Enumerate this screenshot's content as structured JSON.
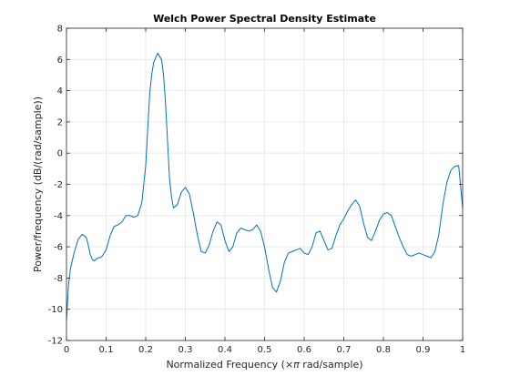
{
  "chart_data": {
    "type": "line",
    "title": "Welch Power Spectral Density Estimate",
    "xlabel_prefix": "Normalized Frequency  (×",
    "xlabel_symbol": "π",
    "xlabel_suffix": " rad/sample)",
    "ylabel": "Power/frequency (dB/(rad/sample))",
    "xlim": [
      0,
      1
    ],
    "ylim": [
      -12,
      8
    ],
    "xticks": [
      "0",
      "0.1",
      "0.2",
      "0.3",
      "0.4",
      "0.5",
      "0.6",
      "0.7",
      "0.8",
      "0.9",
      "1"
    ],
    "yticks": [
      "-12",
      "-10",
      "-8",
      "-6",
      "-4",
      "-2",
      "0",
      "2",
      "4",
      "6",
      "8"
    ],
    "grid": true,
    "series": [
      {
        "color": "#0072BD",
        "x": [
          0.0,
          0.005,
          0.01,
          0.02,
          0.03,
          0.04,
          0.05,
          0.055,
          0.06,
          0.065,
          0.07,
          0.075,
          0.08,
          0.085,
          0.09,
          0.1,
          0.11,
          0.12,
          0.13,
          0.14,
          0.15,
          0.16,
          0.17,
          0.18,
          0.19,
          0.2,
          0.205,
          0.21,
          0.215,
          0.22,
          0.23,
          0.24,
          0.245,
          0.25,
          0.255,
          0.26,
          0.265,
          0.27,
          0.28,
          0.29,
          0.3,
          0.31,
          0.32,
          0.33,
          0.34,
          0.35,
          0.36,
          0.37,
          0.38,
          0.39,
          0.4,
          0.41,
          0.42,
          0.43,
          0.44,
          0.45,
          0.46,
          0.47,
          0.48,
          0.49,
          0.5,
          0.51,
          0.52,
          0.53,
          0.54,
          0.55,
          0.56,
          0.57,
          0.58,
          0.59,
          0.6,
          0.61,
          0.62,
          0.63,
          0.64,
          0.65,
          0.66,
          0.67,
          0.68,
          0.69,
          0.7,
          0.71,
          0.72,
          0.73,
          0.74,
          0.75,
          0.76,
          0.77,
          0.78,
          0.79,
          0.8,
          0.81,
          0.82,
          0.83,
          0.84,
          0.85,
          0.86,
          0.87,
          0.88,
          0.89,
          0.9,
          0.91,
          0.92,
          0.93,
          0.94,
          0.95,
          0.96,
          0.97,
          0.98,
          0.99,
          1.0
        ],
        "y": [
          -10.7,
          -8.5,
          -7.4,
          -6.3,
          -5.5,
          -5.2,
          -5.4,
          -5.9,
          -6.5,
          -6.8,
          -6.9,
          -6.8,
          -6.7,
          -6.7,
          -6.6,
          -6.2,
          -5.3,
          -4.7,
          -4.6,
          -4.4,
          -4.0,
          -4.0,
          -4.1,
          -4.0,
          -3.2,
          -0.8,
          1.5,
          3.8,
          5.0,
          5.8,
          6.4,
          6.0,
          5.0,
          3.2,
          0.8,
          -1.6,
          -2.8,
          -3.5,
          -3.3,
          -2.5,
          -2.2,
          -2.6,
          -3.8,
          -5.2,
          -6.3,
          -6.4,
          -5.9,
          -5.0,
          -4.4,
          -4.6,
          -5.6,
          -6.3,
          -6.0,
          -5.1,
          -4.8,
          -4.9,
          -5.0,
          -4.9,
          -4.6,
          -5.0,
          -6.0,
          -7.4,
          -8.6,
          -8.9,
          -8.2,
          -7.0,
          -6.4,
          -6.3,
          -6.2,
          -6.1,
          -6.4,
          -6.5,
          -6.0,
          -5.1,
          -5.0,
          -5.6,
          -6.2,
          -6.1,
          -5.3,
          -4.6,
          -4.2,
          -3.7,
          -3.3,
          -3.0,
          -3.4,
          -4.5,
          -5.4,
          -5.6,
          -5.0,
          -4.3,
          -3.9,
          -3.8,
          -4.0,
          -4.7,
          -5.4,
          -6.0,
          -6.5,
          -6.6,
          -6.5,
          -6.4,
          -6.5,
          -6.6,
          -6.7,
          -6.3,
          -5.2,
          -3.3,
          -1.9,
          -1.1,
          -0.85,
          -0.8,
          -3.5
        ]
      }
    ]
  }
}
